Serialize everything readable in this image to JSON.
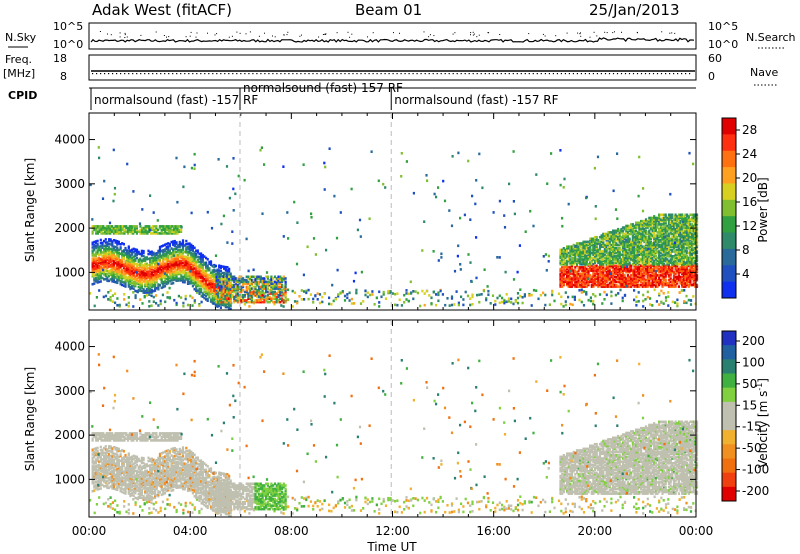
{
  "header": {
    "station": "Adak West (fitACF)",
    "beam": "Beam 01",
    "date": "25/Jan/2013"
  },
  "params": {
    "nsky_label": "N.Sky",
    "nsearch_label": "N.Search",
    "freq_label_1": "Freq.",
    "freq_label_2": "[MHz]",
    "nave_label": "Nave",
    "cpid_label": "CPID",
    "noise_left_ticks": [
      "10^5",
      "10^0"
    ],
    "noise_right_ticks": [
      "10^5",
      "10^0"
    ],
    "freq_ticks": [
      "18",
      "8"
    ],
    "nave_ticks": [
      "60",
      "0"
    ]
  },
  "cpid": [
    {
      "label": "normalsound (fast) -157 RF",
      "start_hour": 0.0,
      "end_hour": 5.97
    },
    {
      "label": "normalsound (fast) 157 RF",
      "start_hour": 5.97,
      "end_hour": 11.95
    },
    {
      "label": "normalsound (fast) -157 RF",
      "start_hour": 11.95,
      "end_hour": 24.0
    }
  ],
  "axes": {
    "xlabel": "Time UT",
    "ylabel": "Slant Range [km]",
    "x_ticks": [
      "00:00",
      "04:00",
      "08:00",
      "12:00",
      "16:00",
      "20:00",
      "00:00"
    ],
    "y_ticks": [
      "1000",
      "2000",
      "3000",
      "4000"
    ]
  },
  "power_colorbar": {
    "label": "Power [dB]",
    "ticks": [
      "4",
      "8",
      "12",
      "16",
      "20",
      "24",
      "28"
    ],
    "colors": [
      "#1030f0",
      "#2050c0",
      "#2a6a9a",
      "#2f8a6a",
      "#30a040",
      "#80c030",
      "#d8d020",
      "#ffa020",
      "#ff7010",
      "#ff3010",
      "#e00000"
    ]
  },
  "velocity_colorbar": {
    "label": "Velocity [m s^-1]",
    "ticks": [
      "200",
      "100",
      "50",
      "15",
      "-15",
      "-50",
      "-100",
      "-200"
    ],
    "colors": [
      "#2030c0",
      "#2060a0",
      "#2a8070",
      "#40b040",
      "#80d040",
      "#c0c0b0",
      "#c0c0b0",
      "#f0b030",
      "#f09020",
      "#f07010",
      "#f04010",
      "#e00000"
    ]
  },
  "chart_data": {
    "type": "heatmap",
    "title": "Adak West (fitACF)  Beam 01  25/Jan/2013",
    "x_unit": "hours UT",
    "xlim": [
      0,
      24
    ],
    "ylim": [
      150,
      4600
    ],
    "power_range_db": [
      0,
      30
    ],
    "velocity_range_ms": [
      -250,
      250
    ],
    "echo_regions": [
      {
        "name": "main E-F echo (power)",
        "t_start": 0.0,
        "t_end": 5.5,
        "range_km": [
          600,
          1500
        ],
        "peak_power_db": 30
      },
      {
        "name": "upper layer",
        "t_start": 0.0,
        "t_end": 3.5,
        "range_km": [
          1800,
          2100
        ],
        "peak_power_db": 16
      },
      {
        "name": "evening echo",
        "t_start": 18.5,
        "t_end": 24.0,
        "range_km": [
          600,
          2400
        ],
        "peak_power_db": 28
      },
      {
        "name": "ground/near range scatter",
        "t_start": 0.0,
        "t_end": 24.0,
        "range_km": [
          150,
          600
        ],
        "peak_power_db": 20
      }
    ]
  }
}
